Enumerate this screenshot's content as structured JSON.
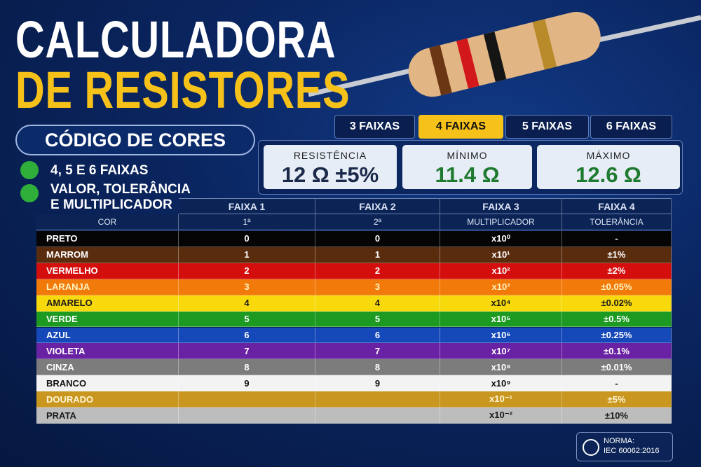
{
  "header": {
    "title_line1": "CALCULADORA",
    "title_line2": "DE RESISTORES",
    "subtitle": "CÓDIGO DE CORES"
  },
  "features": [
    "4, 5 E 6 FAIXAS",
    "VALOR, TOLERÂNCIA\nE MULTIPLICADOR"
  ],
  "tabs": [
    {
      "label": "3 FAIXAS",
      "selected": false
    },
    {
      "label": "4 FAIXAS",
      "selected": true
    },
    {
      "label": "5 FAIXAS",
      "selected": false
    },
    {
      "label": "6 FAIXAS",
      "selected": false
    }
  ],
  "results": [
    {
      "label": "RESISTÊNCIA",
      "value": "12 Ω ±5%",
      "color": "#1b2a4a"
    },
    {
      "label": "MÍNIMO",
      "value": "11.4 Ω",
      "color": "#1e7a2e"
    },
    {
      "label": "MÁXIMO",
      "value": "12.6 Ω",
      "color": "#1e7a2e"
    }
  ],
  "table": {
    "header_row1": [
      "FAIXA 1",
      "FAIXA 2",
      "FAIXA 3",
      "FAIXA 4"
    ],
    "header_row2": [
      "COR",
      "1ª",
      "2ª",
      "MULTIPLICADOR",
      "TOLERÂNCIA"
    ],
    "rows": [
      {
        "bg": "#050505",
        "fg": "#ffffff",
        "cells": [
          "PRETO",
          "0",
          "0",
          "x10⁰",
          "-"
        ]
      },
      {
        "bg": "#5a2c0e",
        "fg": "#ffffff",
        "cells": [
          "MARROM",
          "1",
          "1",
          "x10¹",
          "±1%"
        ]
      },
      {
        "bg": "#d40d0d",
        "fg": "#ffffff",
        "cells": [
          "VERMELHO",
          "2",
          "2",
          "x10²",
          "±2%"
        ]
      },
      {
        "bg": "#f27a0a",
        "fg": "#fff3c0",
        "cells": [
          "LARANJA",
          "3",
          "3",
          "x10³",
          "±0.05%"
        ]
      },
      {
        "bg": "#f7d90c",
        "fg": "#1a1a1a",
        "cells": [
          "AMARELO",
          "4",
          "4",
          "x10⁴",
          "±0.02%"
        ]
      },
      {
        "bg": "#1c9a22",
        "fg": "#ffffff",
        "cells": [
          "VERDE",
          "5",
          "5",
          "x10⁵",
          "±0.5%"
        ]
      },
      {
        "bg": "#1548b8",
        "fg": "#ffffff",
        "cells": [
          "AZUL",
          "6",
          "6",
          "x10⁶",
          "±0.25%"
        ]
      },
      {
        "bg": "#6a22a4",
        "fg": "#ffffff",
        "cells": [
          "VIOLETA",
          "7",
          "7",
          "x10⁷",
          "±0.1%"
        ]
      },
      {
        "bg": "#7c7c7c",
        "fg": "#ffffff",
        "cells": [
          "CINZA",
          "8",
          "8",
          "x10⁸",
          "±0.01%"
        ]
      },
      {
        "bg": "#f3f3f3",
        "fg": "#111111",
        "cells": [
          "BRANCO",
          "9",
          "9",
          "x10⁹",
          "-"
        ]
      },
      {
        "bg": "#c9961f",
        "fg": "#fff6d8",
        "cells": [
          "DOURADO",
          "",
          "",
          "x10⁻¹",
          "±5%"
        ]
      },
      {
        "bg": "#bdbdbd",
        "fg": "#1a1a1a",
        "cells": [
          "PRATA",
          "",
          "",
          "x10⁻²",
          "±10%"
        ]
      }
    ]
  },
  "norma": {
    "label": "NORMA:",
    "value": "IEC 60062:2016"
  }
}
